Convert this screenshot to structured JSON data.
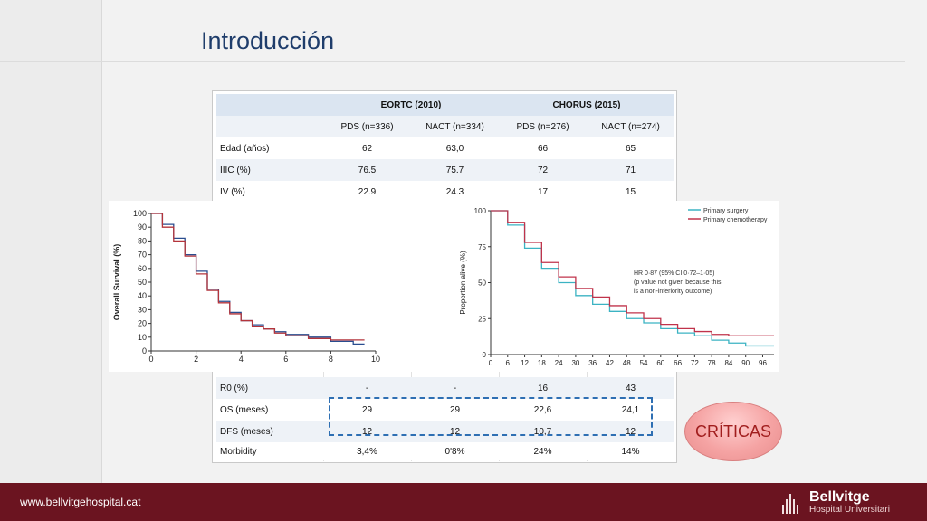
{
  "slide": {
    "title": "Introducción",
    "footer_url": "www.bellvitgehospital.cat",
    "logo_name": "Bellvitge",
    "logo_sub": "Hospital Universitari",
    "callout": "CRÍTICAS"
  },
  "table": {
    "groups": [
      "EORTC (2010)",
      "CHORUS (2015)"
    ],
    "subheaders": [
      "PDS (n=336)",
      "NACT (n=334)",
      "PDS (n=276)",
      "NACT (n=274)"
    ],
    "top_rows": [
      {
        "label": "Edad (años)",
        "cells": [
          "62",
          "63,0",
          "66",
          "65"
        ]
      },
      {
        "label": "IIIC (%)",
        "cells": [
          "76.5",
          "75.7",
          "72",
          "71"
        ]
      },
      {
        "label": "IV (%)",
        "cells": [
          "22.9",
          "24.3",
          "17",
          "15"
        ]
      }
    ],
    "bottom_rows": [
      {
        "label": "R0 (%)",
        "cells": [
          "-",
          "-",
          "16",
          "43"
        ]
      },
      {
        "label": "OS (meses)",
        "cells": [
          "29",
          "29",
          "22,6",
          "24,1"
        ]
      },
      {
        "label": "DFS (meses)",
        "cells": [
          "12",
          "12",
          "10,7",
          "12"
        ]
      },
      {
        "label": "Morbidity",
        "cells": [
          "3,4%",
          "0'8%",
          "24%",
          "14%"
        ]
      }
    ]
  },
  "chart_data": [
    {
      "type": "line",
      "ylabel": "Overall Survival (%)",
      "xlabel": "",
      "x_ticks": [
        "0",
        "2",
        "4",
        "6",
        "8",
        "10"
      ],
      "y_ticks": [
        "0",
        "10",
        "20",
        "30",
        "40",
        "50",
        "60",
        "70",
        "80",
        "90",
        "100"
      ],
      "xlim": [
        0,
        10
      ],
      "ylim": [
        0,
        100
      ],
      "series": [
        {
          "color": "#2a4d8f",
          "x": [
            0,
            0.5,
            1,
            1.5,
            2,
            2.5,
            3,
            3.5,
            4,
            4.5,
            5,
            5.5,
            6,
            7,
            8,
            9,
            9.5
          ],
          "y": [
            100,
            92,
            82,
            70,
            58,
            45,
            36,
            28,
            22,
            19,
            16,
            14,
            12,
            10,
            7,
            5,
            5
          ]
        },
        {
          "color": "#b4343b",
          "x": [
            0,
            0.5,
            1,
            1.5,
            2,
            2.5,
            3,
            3.5,
            4,
            4.5,
            5,
            5.5,
            6,
            7,
            8,
            9,
            9.5
          ],
          "y": [
            100,
            90,
            80,
            69,
            56,
            44,
            35,
            27,
            22,
            18,
            16,
            13,
            11,
            9,
            8,
            8,
            8
          ]
        }
      ]
    },
    {
      "type": "line",
      "ylabel": "Proportion alive (%)",
      "xlabel": "",
      "x_ticks": [
        "0",
        "6",
        "12",
        "18",
        "24",
        "30",
        "36",
        "42",
        "48",
        "54",
        "60",
        "66",
        "72",
        "78",
        "84",
        "90",
        "96"
      ],
      "y_ticks": [
        "0",
        "25",
        "50",
        "75",
        "100"
      ],
      "xlim": [
        0,
        100
      ],
      "ylim": [
        0,
        100
      ],
      "annotation": [
        "HR 0·87 (95% CI 0·72–1·05)",
        "(p value not given because this",
        "is a non-inferiority outcome)"
      ],
      "legend_position": "top-right",
      "series": [
        {
          "name": "Primary surgery",
          "color": "#3bb3c3",
          "x": [
            0,
            6,
            12,
            18,
            24,
            30,
            36,
            42,
            48,
            54,
            60,
            66,
            72,
            78,
            84,
            90,
            96,
            100
          ],
          "y": [
            100,
            90,
            74,
            60,
            50,
            41,
            35,
            30,
            25,
            22,
            18,
            15,
            13,
            10,
            8,
            6,
            6,
            6
          ]
        },
        {
          "name": "Primary chemotherapy",
          "color": "#c0334b",
          "x": [
            0,
            6,
            12,
            18,
            24,
            30,
            36,
            42,
            48,
            54,
            60,
            66,
            72,
            78,
            84,
            90,
            96,
            100
          ],
          "y": [
            100,
            92,
            78,
            64,
            54,
            46,
            40,
            34,
            29,
            25,
            21,
            18,
            16,
            14,
            13,
            13,
            13,
            13
          ]
        }
      ]
    }
  ]
}
